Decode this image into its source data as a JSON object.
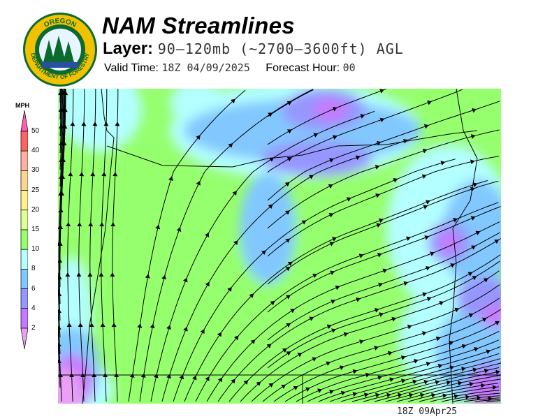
{
  "header": {
    "title": "NAM Streamlines",
    "layer_label": "Layer:",
    "layer_value": "90–120mb (~2700–3600ft) AGL",
    "valid_time_label": "Valid Time:",
    "valid_time_value": "18Z 04/09/2025",
    "forecast_hour_label": "Forecast Hour:",
    "forecast_hour_value": "00"
  },
  "logo": {
    "top_text": "OREGON",
    "bottom_text": "DEPARTMENT OF FORESTRY",
    "ring_color": "#f2c200",
    "inner_color": "#0b6b2e"
  },
  "legend": {
    "unit": "MPH",
    "labels": [
      "50",
      "40",
      "30",
      "25",
      "20",
      "15",
      "10",
      "8",
      "6",
      "4",
      "2"
    ],
    "colors": [
      "#ff5fb0",
      "#ff6464",
      "#ffb0a0",
      "#ffd490",
      "#fff08c",
      "#dcff96",
      "#96ff6e",
      "#b4ffff",
      "#82c8ff",
      "#9696ff",
      "#c878ff",
      "#eaa0f5"
    ]
  },
  "footer": {
    "timestamp": "18Z 09Apr25"
  }
}
